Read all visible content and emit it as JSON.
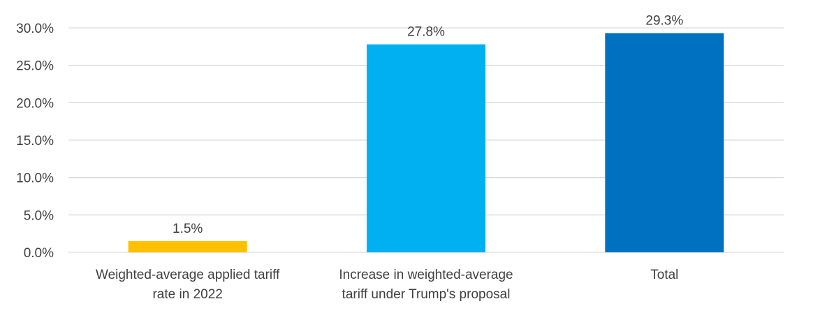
{
  "chart_data": {
    "type": "bar",
    "categories": [
      [
        "Weighted-average applied tariff",
        "rate in 2022"
      ],
      [
        "Increase in weighted-average",
        "tariff under Trump's proposal"
      ],
      [
        "Total"
      ]
    ],
    "values": [
      1.5,
      27.8,
      29.3
    ],
    "data_labels": [
      "1.5%",
      "27.8%",
      "29.3%"
    ],
    "colors": [
      "#FFC000",
      "#00B0F0",
      "#0070C0"
    ],
    "ylim": [
      0,
      30
    ],
    "yticks": [
      0,
      5,
      10,
      15,
      20,
      25,
      30
    ],
    "ytick_labels": [
      "0.0%",
      "5.0%",
      "10.0%",
      "15.0%",
      "20.0%",
      "25.0%",
      "30.0%"
    ],
    "grid": true,
    "legend": "none"
  }
}
